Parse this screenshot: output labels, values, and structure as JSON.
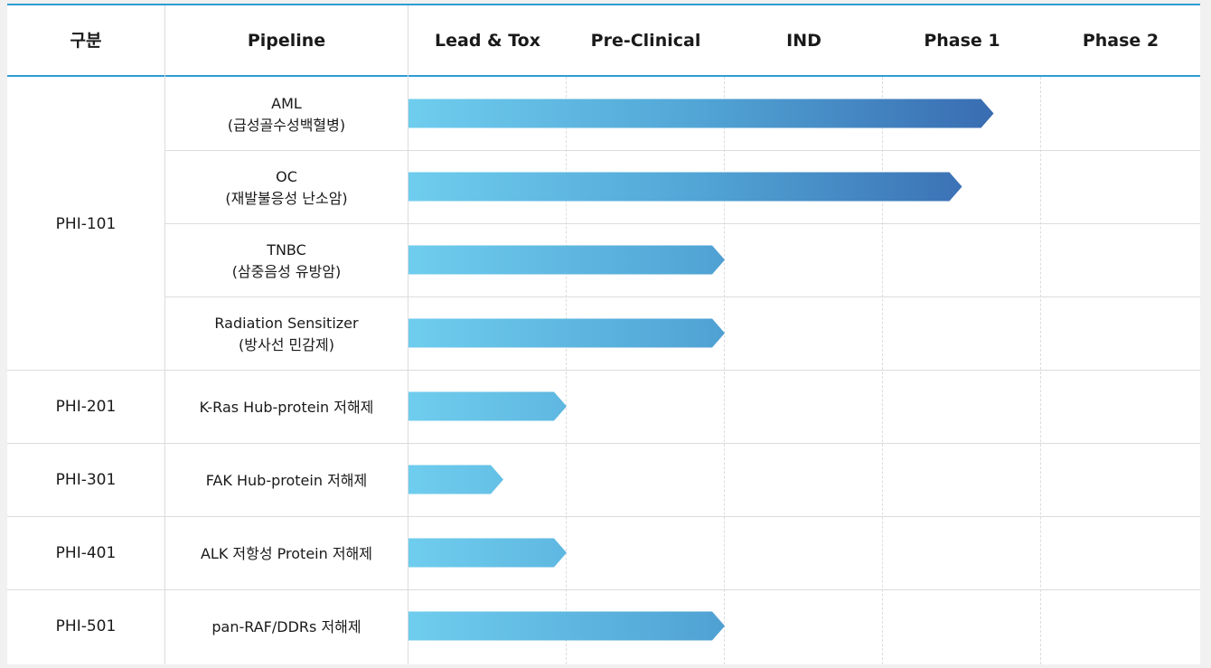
{
  "header": {
    "group_col": "구분",
    "pipeline_col": "Pipeline",
    "stages": [
      "Lead & Tox",
      "Pre-Clinical",
      "IND",
      "Phase 1",
      "Phase 2"
    ]
  },
  "groups": [
    {
      "label": "PHI-101",
      "row_span": 4
    },
    {
      "label": "PHI-201",
      "row_span": 1
    },
    {
      "label": "PHI-301",
      "row_span": 1
    },
    {
      "label": "PHI-401",
      "row_span": 1
    },
    {
      "label": "PHI-501",
      "row_span": 1
    }
  ],
  "rows": [
    {
      "line1": "AML",
      "line2": "(급성골수성백혈병)"
    },
    {
      "line1": "OC",
      "line2": "(재발불응성 난소암)"
    },
    {
      "line1": "TNBC",
      "line2": "(삼중음성 유방암)"
    },
    {
      "line1": "Radiation Sensitizer",
      "line2": "(방사선 민감제)"
    },
    {
      "line1": "K-Ras Hub-protein 저해제",
      "line2": ""
    },
    {
      "line1": "FAK Hub-protein 저해제",
      "line2": ""
    },
    {
      "line1": "ALK 저항성 Protein 저해제",
      "line2": ""
    },
    {
      "line1": "pan-RAF/DDRs 저해제",
      "line2": ""
    }
  ],
  "colors": {
    "accent_line": "#2f9bd4",
    "bar_start": "#6fcdee",
    "bar_mid": "#52a6d6",
    "bar_end": "#3563ac"
  },
  "chart_data": {
    "type": "bar",
    "orientation": "horizontal",
    "x_stages": [
      "Lead & Tox",
      "Pre-Clinical",
      "IND",
      "Phase 1",
      "Phase 2"
    ],
    "categories": [
      "AML (급성골수성백혈병)",
      "OC (재발불응성 난소암)",
      "TNBC (삼중음성 유방암)",
      "Radiation Sensitizer (방사선 민감제)",
      "K-Ras Hub-protein 저해제",
      "FAK Hub-protein 저해제",
      "ALK 저항성 Protein 저해제",
      "pan-RAF/DDRs 저해제"
    ],
    "values": [
      3.7,
      3.5,
      2.0,
      2.0,
      1.0,
      0.6,
      1.0,
      2.0
    ],
    "xlim": [
      0,
      5
    ],
    "value_unit": "stages completed (1 = Lead & Tox, 2 = Pre-Clinical, 3 = IND, 4 = Phase 1, 5 = Phase 2)",
    "grid": true
  }
}
